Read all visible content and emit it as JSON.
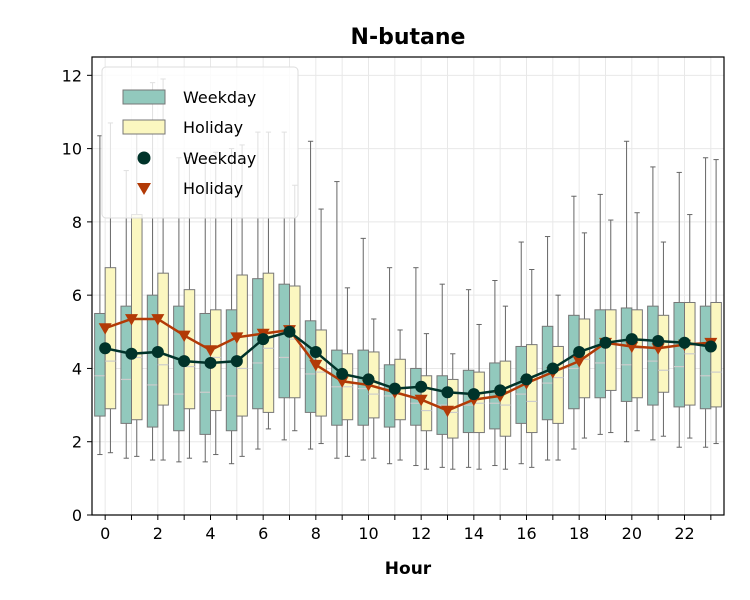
{
  "chart_data": {
    "type": "box",
    "title": "N-butane",
    "xlabel": "Hour",
    "ylabel": "",
    "x": [
      0,
      1,
      2,
      3,
      4,
      5,
      6,
      7,
      8,
      9,
      10,
      11,
      12,
      13,
      14,
      15,
      16,
      17,
      18,
      19,
      20,
      21,
      22,
      23
    ],
    "xlim": [
      -0.5,
      23.5
    ],
    "ylim": [
      0,
      12.5
    ],
    "xticks": [
      "0",
      "2",
      "4",
      "6",
      "8",
      "10",
      "12",
      "14",
      "16",
      "18",
      "20",
      "22"
    ],
    "yticks": [
      "0",
      "2",
      "4",
      "6",
      "8",
      "10",
      "12"
    ],
    "grid": true,
    "legend": {
      "placement": "top-left",
      "entries": [
        "Weekday",
        "Holiday",
        "Weekday",
        "Holiday"
      ]
    },
    "colors": {
      "weekday_box": "#92c9bd",
      "holiday_box": "#fbf7c0",
      "weekday_line": "#00332a",
      "holiday_line": "#b23a06",
      "box_edge": "#777777"
    },
    "boxes": {
      "weekday": [
        {
          "q1": 2.7,
          "median": 3.8,
          "q3": 5.5,
          "whislo": 1.65,
          "whishi": 10.35
        },
        {
          "q1": 2.5,
          "median": 3.7,
          "q3": 5.7,
          "whislo": 1.55,
          "whishi": 9.4
        },
        {
          "q1": 2.4,
          "median": 3.55,
          "q3": 6.0,
          "whislo": 1.5,
          "whishi": 11.8
        },
        {
          "q1": 2.3,
          "median": 3.3,
          "q3": 5.7,
          "whislo": 1.45,
          "whishi": 9.75
        },
        {
          "q1": 2.2,
          "median": 3.35,
          "q3": 5.5,
          "whislo": 1.45,
          "whishi": 9.75
        },
        {
          "q1": 2.3,
          "median": 3.25,
          "q3": 5.6,
          "whislo": 1.4,
          "whishi": 10.0
        },
        {
          "q1": 2.9,
          "median": 4.15,
          "q3": 6.45,
          "whislo": 1.8,
          "whishi": 10.45
        },
        {
          "q1": 3.2,
          "median": 4.3,
          "q3": 6.3,
          "whislo": 2.05,
          "whishi": 10.45
        },
        {
          "q1": 2.8,
          "median": 3.85,
          "q3": 5.3,
          "whislo": 1.8,
          "whishi": 10.2
        },
        {
          "q1": 2.45,
          "median": 3.5,
          "q3": 4.5,
          "whislo": 1.55,
          "whishi": 9.1
        },
        {
          "q1": 2.45,
          "median": 3.45,
          "q3": 4.5,
          "whislo": 1.5,
          "whishi": 7.55
        },
        {
          "q1": 2.4,
          "median": 3.25,
          "q3": 4.1,
          "whislo": 1.4,
          "whishi": 6.75
        },
        {
          "q1": 2.45,
          "median": 3.05,
          "q3": 4.0,
          "whislo": 1.35,
          "whishi": 6.75
        },
        {
          "q1": 2.2,
          "median": 3.0,
          "q3": 3.8,
          "whislo": 1.3,
          "whishi": 6.3
        },
        {
          "q1": 2.25,
          "median": 3.0,
          "q3": 3.95,
          "whislo": 1.3,
          "whishi": 6.15
        },
        {
          "q1": 2.35,
          "median": 3.05,
          "q3": 4.15,
          "whislo": 1.35,
          "whishi": 6.4
        },
        {
          "q1": 2.5,
          "median": 3.3,
          "q3": 4.6,
          "whislo": 1.4,
          "whishi": 7.45
        },
        {
          "q1": 2.6,
          "median": 3.6,
          "q3": 5.15,
          "whislo": 1.5,
          "whishi": 7.6
        },
        {
          "q1": 2.9,
          "median": 4.0,
          "q3": 5.45,
          "whislo": 1.8,
          "whishi": 8.7
        },
        {
          "q1": 3.2,
          "median": 4.15,
          "q3": 5.6,
          "whislo": 2.2,
          "whishi": 8.75
        },
        {
          "q1": 3.1,
          "median": 4.1,
          "q3": 5.65,
          "whislo": 2.0,
          "whishi": 10.2
        },
        {
          "q1": 3.0,
          "median": 4.2,
          "q3": 5.7,
          "whislo": 2.05,
          "whishi": 9.5
        },
        {
          "q1": 2.95,
          "median": 4.05,
          "q3": 5.8,
          "whislo": 1.85,
          "whishi": 9.35
        },
        {
          "q1": 2.9,
          "median": 3.8,
          "q3": 5.7,
          "whislo": 1.85,
          "whishi": 9.75
        }
      ],
      "holiday": [
        {
          "q1": 2.9,
          "median": 4.2,
          "q3": 6.75,
          "whislo": 1.7,
          "whishi": 10.7
        },
        {
          "q1": 2.6,
          "median": 4.3,
          "q3": 8.2,
          "whislo": 1.6,
          "whishi": 10.6
        },
        {
          "q1": 3.0,
          "median": 4.1,
          "q3": 6.6,
          "whislo": 1.5,
          "whishi": 11.9
        },
        {
          "q1": 2.9,
          "median": 4.05,
          "q3": 6.15,
          "whislo": 1.55,
          "whishi": 9.75
        },
        {
          "q1": 2.85,
          "median": 4.3,
          "q3": 5.6,
          "whislo": 1.65,
          "whishi": 9.9
        },
        {
          "q1": 2.7,
          "median": 4.0,
          "q3": 6.55,
          "whislo": 1.6,
          "whishi": 10.1
        },
        {
          "q1": 2.8,
          "median": 4.55,
          "q3": 6.6,
          "whislo": 2.35,
          "whishi": 10.45
        },
        {
          "q1": 3.2,
          "median": 4.8,
          "q3": 6.25,
          "whislo": 2.3,
          "whishi": 9.0
        },
        {
          "q1": 2.7,
          "median": 3.9,
          "q3": 5.05,
          "whislo": 1.95,
          "whishi": 8.35
        },
        {
          "q1": 2.6,
          "median": 3.5,
          "q3": 4.4,
          "whislo": 1.6,
          "whishi": 6.2
        },
        {
          "q1": 2.65,
          "median": 3.3,
          "q3": 4.45,
          "whislo": 1.55,
          "whishi": 5.35
        },
        {
          "q1": 2.6,
          "median": 3.3,
          "q3": 4.25,
          "whislo": 1.5,
          "whishi": 5.05
        },
        {
          "q1": 2.3,
          "median": 2.85,
          "q3": 3.8,
          "whislo": 1.25,
          "whishi": 4.95
        },
        {
          "q1": 2.1,
          "median": 2.8,
          "q3": 3.7,
          "whislo": 1.25,
          "whishi": 4.4
        },
        {
          "q1": 2.25,
          "median": 3.05,
          "q3": 3.9,
          "whislo": 1.25,
          "whishi": 5.2
        },
        {
          "q1": 2.15,
          "median": 3.0,
          "q3": 4.2,
          "whislo": 1.25,
          "whishi": 5.7
        },
        {
          "q1": 2.25,
          "median": 3.1,
          "q3": 4.65,
          "whislo": 1.3,
          "whishi": 6.7
        },
        {
          "q1": 2.5,
          "median": 3.75,
          "q3": 4.6,
          "whislo": 1.5,
          "whishi": 6.0
        },
        {
          "q1": 3.2,
          "median": 4.25,
          "q3": 5.35,
          "whislo": 2.1,
          "whishi": 7.7
        },
        {
          "q1": 3.4,
          "median": 4.65,
          "q3": 5.6,
          "whislo": 2.25,
          "whishi": 8.05
        },
        {
          "q1": 3.2,
          "median": 4.55,
          "q3": 5.6,
          "whislo": 2.3,
          "whishi": 8.25
        },
        {
          "q1": 3.35,
          "median": 3.95,
          "q3": 5.45,
          "whislo": 2.15,
          "whishi": 7.45
        },
        {
          "q1": 3.0,
          "median": 4.4,
          "q3": 5.8,
          "whislo": 2.1,
          "whishi": 8.2
        },
        {
          "q1": 2.95,
          "median": 3.9,
          "q3": 5.8,
          "whislo": 1.95,
          "whishi": 9.7
        }
      ]
    },
    "series": [
      {
        "name": "Weekday",
        "marker": "circle",
        "values": [
          4.55,
          4.4,
          4.45,
          4.2,
          4.15,
          4.2,
          4.8,
          5.0,
          4.45,
          3.85,
          3.7,
          3.45,
          3.5,
          3.35,
          3.3,
          3.4,
          3.7,
          4.0,
          4.45,
          4.7,
          4.8,
          4.75,
          4.7,
          4.6
        ]
      },
      {
        "name": "Holiday",
        "marker": "triangle-down",
        "values": [
          5.1,
          5.35,
          5.35,
          4.9,
          4.5,
          4.85,
          4.95,
          5.05,
          4.1,
          3.65,
          3.55,
          3.35,
          3.15,
          2.85,
          3.15,
          3.25,
          3.6,
          3.9,
          4.2,
          4.7,
          4.6,
          4.55,
          4.65,
          4.7
        ]
      }
    ]
  }
}
